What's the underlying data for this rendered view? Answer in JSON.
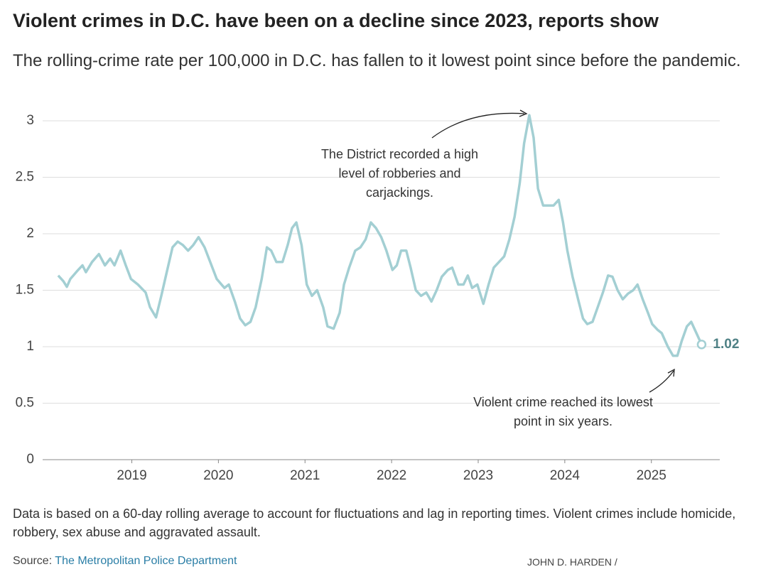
{
  "chart_data": {
    "type": "line",
    "title": "Violent crimes in D.C. have been on a decline since 2023, reports show",
    "subtitle": "The rolling-crime rate per 100,000 in D.C. has fallen to it lowest point since before the pandemic.",
    "note": "Data is based on a 60-day rolling average to account for fluctuations and lag in reporting times. Violent crimes include homicide, robbery, sex abuse and aggravated assault.",
    "source_label": "Source:",
    "source": "The Metropolitan Police Department",
    "credit": "JOHN D. HARDEN /",
    "annotations": [
      "The District recorded a high level of robberies and carjackings.",
      "Violent crime reached its lowest point in six years."
    ],
    "x": [
      2018.15,
      2018.21,
      2018.25,
      2018.29,
      2018.38,
      2018.43,
      2018.47,
      2018.54,
      2018.62,
      2018.69,
      2018.75,
      2018.8,
      2018.87,
      2018.93,
      2018.99,
      2019.07,
      2019.16,
      2019.21,
      2019.28,
      2019.34,
      2019.4,
      2019.47,
      2019.53,
      2019.59,
      2019.65,
      2019.71,
      2019.77,
      2019.84,
      2019.89,
      2019.98,
      2020.07,
      2020.12,
      2020.19,
      2020.25,
      2020.31,
      2020.37,
      2020.43,
      2020.5,
      2020.56,
      2020.61,
      2020.67,
      2020.74,
      2020.8,
      2020.85,
      2020.9,
      2020.96,
      2021.02,
      2021.08,
      2021.14,
      2021.21,
      2021.26,
      2021.33,
      2021.4,
      2021.45,
      2021.51,
      2021.58,
      2021.64,
      2021.7,
      2021.76,
      2021.82,
      2021.88,
      2021.94,
      2022.01,
      2022.06,
      2022.11,
      2022.17,
      2022.22,
      2022.28,
      2022.34,
      2022.4,
      2022.46,
      2022.52,
      2022.58,
      2022.65,
      2022.7,
      2022.77,
      2022.83,
      2022.88,
      2022.93,
      2022.99,
      2023.06,
      2023.12,
      2023.18,
      2023.24,
      2023.3,
      2023.36,
      2023.42,
      2023.48,
      2023.53,
      2023.59,
      2023.64,
      2023.69,
      2023.75,
      2023.8,
      2023.87,
      2023.93,
      2023.98,
      2024.03,
      2024.09,
      2024.16,
      2024.21,
      2024.26,
      2024.32,
      2024.38,
      2024.44,
      2024.5,
      2024.55,
      2024.61,
      2024.67,
      2024.73,
      2024.79,
      2024.84,
      2024.9,
      2024.96,
      2025.01,
      2025.07,
      2025.12,
      2025.19,
      2025.25,
      2025.3,
      2025.35,
      2025.41,
      2025.46,
      2025.52,
      2025.58
    ],
    "series": [
      {
        "color": "#a3cfd3",
        "values": [
          1.63,
          1.58,
          1.53,
          1.6,
          1.68,
          1.72,
          1.66,
          1.75,
          1.82,
          1.72,
          1.78,
          1.72,
          1.85,
          1.72,
          1.6,
          1.55,
          1.48,
          1.35,
          1.26,
          1.45,
          1.65,
          1.88,
          1.93,
          1.9,
          1.85,
          1.9,
          1.97,
          1.88,
          1.78,
          1.6,
          1.52,
          1.55,
          1.4,
          1.25,
          1.19,
          1.22,
          1.35,
          1.6,
          1.88,
          1.85,
          1.75,
          1.75,
          1.9,
          2.05,
          2.1,
          1.9,
          1.55,
          1.45,
          1.5,
          1.35,
          1.18,
          1.16,
          1.3,
          1.55,
          1.7,
          1.85,
          1.88,
          1.95,
          2.1,
          2.05,
          1.97,
          1.85,
          1.68,
          1.72,
          1.85,
          1.85,
          1.7,
          1.5,
          1.45,
          1.48,
          1.4,
          1.5,
          1.62,
          1.68,
          1.7,
          1.55,
          1.55,
          1.63,
          1.52,
          1.55,
          1.38,
          1.55,
          1.7,
          1.75,
          1.8,
          1.95,
          2.15,
          2.45,
          2.8,
          3.05,
          2.85,
          2.4,
          2.25,
          2.25,
          2.25,
          2.3,
          2.1,
          1.85,
          1.62,
          1.4,
          1.25,
          1.2,
          1.22,
          1.35,
          1.48,
          1.63,
          1.62,
          1.5,
          1.42,
          1.47,
          1.5,
          1.55,
          1.42,
          1.3,
          1.2,
          1.15,
          1.12,
          1.0,
          0.92,
          0.92,
          1.05,
          1.18,
          1.22,
          1.12,
          1.02
        ]
      }
    ],
    "xlim": [
      2017.97,
      2025.79
    ],
    "xticks": [
      2019,
      2020,
      2021,
      2022,
      2023,
      2024,
      2025
    ],
    "ylim": [
      0,
      3
    ],
    "yticks": [
      0,
      0.5,
      1,
      1.5,
      2,
      2.5,
      3
    ],
    "grid": true
  }
}
